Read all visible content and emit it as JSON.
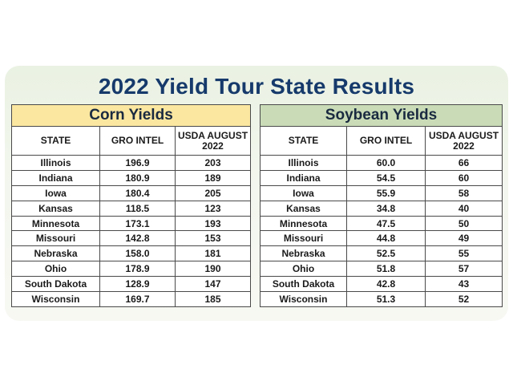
{
  "title": "2022 Yield Tour State Results",
  "corn": {
    "heading": "Corn Yields",
    "columns": [
      "STATE",
      "GRO INTEL",
      "USDA AUGUST 2022"
    ],
    "rows": [
      [
        "Illinois",
        "196.9",
        "203"
      ],
      [
        "Indiana",
        "180.9",
        "189"
      ],
      [
        "Iowa",
        "180.4",
        "205"
      ],
      [
        "Kansas",
        "118.5",
        "123"
      ],
      [
        "Minnesota",
        "173.1",
        "193"
      ],
      [
        "Missouri",
        "142.8",
        "153"
      ],
      [
        "Nebraska",
        "158.0",
        "181"
      ],
      [
        "Ohio",
        "178.9",
        "190"
      ],
      [
        "South Dakota",
        "128.9",
        "147"
      ],
      [
        "Wisconsin",
        "169.7",
        "185"
      ]
    ]
  },
  "soybean": {
    "heading": "Soybean Yields",
    "columns": [
      "STATE",
      "GRO INTEL",
      "USDA AUGUST 2022"
    ],
    "rows": [
      [
        "Illinois",
        "60.0",
        "66"
      ],
      [
        "Indiana",
        "54.5",
        "60"
      ],
      [
        "Iowa",
        "55.9",
        "58"
      ],
      [
        "Kansas",
        "34.8",
        "40"
      ],
      [
        "Minnesota",
        "47.5",
        "50"
      ],
      [
        "Missouri",
        "44.8",
        "49"
      ],
      [
        "Nebraska",
        "52.5",
        "55"
      ],
      [
        "Ohio",
        "51.8",
        "57"
      ],
      [
        "South Dakota",
        "42.8",
        "43"
      ],
      [
        "Wisconsin",
        "51.3",
        "52"
      ]
    ]
  },
  "colors": {
    "title": "#163a6b",
    "corn_header": "#fbe7a0",
    "soy_header": "#c9dcb7",
    "card_bg": "#eef4e8"
  }
}
